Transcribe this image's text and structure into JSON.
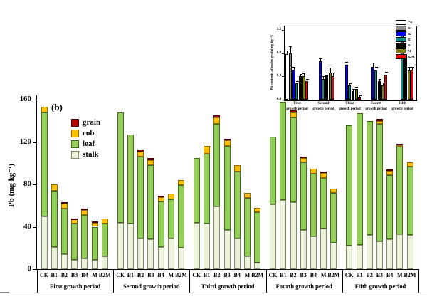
{
  "figure_label": "(b)",
  "chart_data": [
    {
      "name": "main-stacked-bar",
      "type": "bar",
      "stacked": true,
      "ylabel": "Pb (mg kg⁻¹)",
      "yticks": [
        0,
        40,
        80,
        120,
        160
      ],
      "ytick_labels": [
        "0",
        "40",
        "80",
        "120",
        "160"
      ],
      "ylim": [
        0,
        160
      ],
      "grid": false,
      "legend_position": "upper-left-inside",
      "categories": [
        "CK",
        "B1",
        "B2",
        "B3",
        "B4",
        "M",
        "B2M"
      ],
      "segments_order": [
        "stalk",
        "leaf",
        "cob",
        "grain"
      ],
      "segment_styles": {
        "stalk": {
          "fill": "#edf2dc",
          "border": "#7d8f63"
        },
        "leaf": {
          "fill": "#92ce58",
          "border": "#44691f"
        },
        "cob": {
          "fill": "#ffc000",
          "border": "#8f6b00"
        },
        "grain": {
          "fill": "#b00500",
          "border": "#4d0000"
        }
      },
      "legend": [
        {
          "label": "grain",
          "fill": "#b00500",
          "border": "#4d0000"
        },
        {
          "label": "cob",
          "fill": "#ffc000",
          "border": "#8f6b00"
        },
        {
          "label": "leaf",
          "fill": "#92ce58",
          "border": "#44691f"
        },
        {
          "label": "stalk",
          "fill": "#edf2dc",
          "border": "#7d8f63"
        }
      ],
      "groups": [
        {
          "label": "First growth period",
          "values": [
            [
              50,
              98,
              5,
              0
            ],
            [
              21,
              53,
              6,
              0
            ],
            [
              14,
              43,
              5,
              1
            ],
            [
              9,
              34,
              4,
              1
            ],
            [
              10,
              41,
              5,
              1
            ],
            [
              9,
              31,
              4,
              1
            ],
            [
              12,
              31,
              5,
              0
            ]
          ]
        },
        {
          "label": "Second growth period",
          "values": [
            [
              44,
              104,
              0,
              0
            ],
            [
              43,
              84,
              0,
              0
            ],
            [
              29,
              77,
              5,
              2
            ],
            [
              28,
              70,
              5,
              2
            ],
            [
              21,
              43,
              4,
              1
            ],
            [
              29,
              37,
              5,
              0
            ],
            [
              20,
              59,
              5,
              0
            ]
          ]
        },
        {
          "label": "Third growth period",
          "values": [
            [
              44,
              61,
              0,
              0
            ],
            [
              43,
              66,
              7,
              0
            ],
            [
              59,
              78,
              6,
              2
            ],
            [
              37,
              79,
              6,
              1
            ],
            [
              29,
              63,
              6,
              0
            ],
            [
              12,
              55,
              5,
              0
            ],
            [
              6,
              48,
              4,
              0
            ]
          ]
        },
        {
          "label": "Fourth growth period",
          "values": [
            [
              61,
              64,
              0,
              0
            ],
            [
              65,
              93,
              0,
              0
            ],
            [
              63,
              80,
              5,
              2
            ],
            [
              37,
              64,
              4,
              1
            ],
            [
              31,
              59,
              5,
              0
            ],
            [
              38,
              48,
              5,
              1
            ],
            [
              25,
              47,
              4,
              0
            ]
          ]
        },
        {
          "label": "Fifth growth period",
          "values": [
            [
              22,
              114,
              0,
              0
            ],
            [
              23,
              124,
              0,
              0
            ],
            [
              32,
              108,
              0,
              0
            ],
            [
              26,
              111,
              3,
              2
            ],
            [
              28,
              61,
              4,
              1
            ],
            [
              33,
              83,
              1,
              1
            ],
            [
              32,
              65,
              4,
              0
            ]
          ]
        }
      ]
    },
    {
      "name": "inset-grain-bar",
      "type": "bar",
      "grouped": true,
      "ylabel": "Pb contents of maize grain(mg kg⁻¹)",
      "yticks": [
        0,
        0.4,
        0.8,
        1.2
      ],
      "ytick_labels": [
        "0.0",
        "0.4",
        "0.8",
        "1.2"
      ],
      "ylim": [
        0,
        1.3
      ],
      "grid": false,
      "legend_position": "upper-right-outside",
      "category_top": [
        "First",
        "Second",
        "Third",
        "Fourth",
        "Fifth"
      ],
      "category_bottom": "growth period",
      "series": [
        {
          "name": "CK",
          "fill": "#ffffff",
          "values": [
            0.78,
            null,
            null,
            null,
            null
          ],
          "errors": [
            0.07,
            null,
            null,
            null,
            null
          ]
        },
        {
          "name": "B1",
          "fill": "#8c8c8c",
          "values": [
            0.79,
            null,
            null,
            null,
            null
          ],
          "errors": [
            0.13,
            null,
            null,
            null,
            null
          ]
        },
        {
          "name": "B2",
          "fill": "#0000ee",
          "values": [
            0.51,
            0.66,
            0.6,
            0.56,
            null
          ],
          "errors": [
            0.05,
            0.05,
            0.05,
            0.08,
            null
          ]
        },
        {
          "name": "B3",
          "fill": "#0e8c84",
          "values": [
            0.28,
            0.36,
            0.25,
            0.5,
            1.12
          ],
          "errors": [
            0.04,
            0.05,
            0.03,
            0.06,
            0.06
          ]
        },
        {
          "name": "B4",
          "fill": "#000000",
          "values": [
            0.4,
            0.43,
            0.15,
            0.32,
            0.78
          ],
          "errors": [
            0.04,
            0.08,
            0.03,
            0.04,
            0.07
          ]
        },
        {
          "name": "M",
          "fill": "#7f7f00",
          "values": [
            0.4,
            0.47,
            0.18,
            0.25,
            0.5
          ],
          "errors": [
            0.05,
            0.08,
            0.04,
            0.04,
            0.06
          ]
        },
        {
          "name": "B2M",
          "fill": "#ee0000",
          "values": [
            0.32,
            0.41,
            0.05,
            0.43,
            0.52
          ],
          "errors": [
            0.04,
            0.06,
            0.02,
            0.05,
            0.04
          ]
        }
      ]
    }
  ]
}
